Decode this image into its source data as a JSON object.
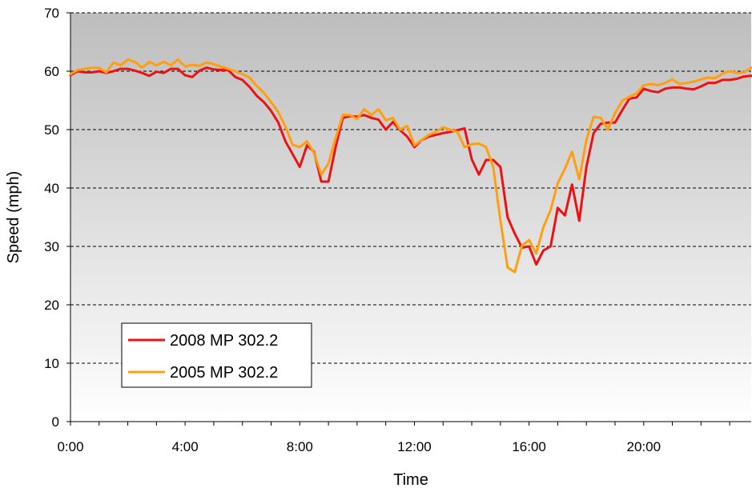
{
  "chart_data": {
    "type": "line",
    "title": "",
    "xlabel": "Time",
    "ylabel": "Speed (mph)",
    "xlim": [
      0,
      23.75
    ],
    "ylim": [
      0,
      70
    ],
    "yticks": [
      0,
      10,
      20,
      30,
      40,
      50,
      60,
      70
    ],
    "xticks": [
      {
        "value": 0,
        "label": "0:00"
      },
      {
        "value": 4,
        "label": "4:00"
      },
      {
        "value": 8,
        "label": "8:00"
      },
      {
        "value": 12,
        "label": "12:00"
      },
      {
        "value": 16,
        "label": "16:00"
      },
      {
        "value": 20,
        "label": "20:00"
      }
    ],
    "grid": "horizontal dashed",
    "background": "vertical gradient, dark gray top to white bottom",
    "legend_position": "bottom-left",
    "colors": {
      "series_2008": "#ee1111",
      "series_2005": "#ff9f0f",
      "plot_top": "#bdbdbd",
      "plot_bottom": "#ffffff"
    },
    "series": [
      {
        "name": "2008 MP 302.2",
        "points": [
          [
            0.0,
            59.3
          ],
          [
            0.25,
            60.0
          ],
          [
            0.5,
            59.8
          ],
          [
            0.75,
            59.8
          ],
          [
            1.0,
            60.0
          ],
          [
            1.25,
            59.7
          ],
          [
            1.5,
            60.0
          ],
          [
            1.75,
            60.4
          ],
          [
            2.0,
            60.4
          ],
          [
            2.25,
            60.1
          ],
          [
            2.5,
            59.7
          ],
          [
            2.75,
            59.2
          ],
          [
            3.0,
            59.9
          ],
          [
            3.25,
            59.7
          ],
          [
            3.5,
            60.4
          ],
          [
            3.75,
            60.4
          ],
          [
            4.0,
            59.3
          ],
          [
            4.25,
            59.0
          ],
          [
            4.5,
            60.1
          ],
          [
            4.75,
            60.6
          ],
          [
            5.0,
            60.3
          ],
          [
            5.25,
            60.2
          ],
          [
            5.5,
            60.2
          ],
          [
            5.75,
            59.0
          ],
          [
            6.0,
            58.5
          ],
          [
            6.25,
            57.3
          ],
          [
            6.5,
            55.8
          ],
          [
            6.75,
            54.7
          ],
          [
            7.0,
            53.2
          ],
          [
            7.25,
            51.2
          ],
          [
            7.5,
            48.0
          ],
          [
            7.75,
            45.8
          ],
          [
            8.0,
            43.6
          ],
          [
            8.25,
            47.3
          ],
          [
            8.5,
            46.2
          ],
          [
            8.75,
            41.1
          ],
          [
            9.0,
            41.1
          ],
          [
            9.25,
            47.0
          ],
          [
            9.5,
            52.0
          ],
          [
            9.75,
            52.3
          ],
          [
            10.0,
            52.2
          ],
          [
            10.25,
            52.5
          ],
          [
            10.5,
            52.0
          ],
          [
            10.75,
            51.7
          ],
          [
            11.0,
            50.0
          ],
          [
            11.25,
            51.3
          ],
          [
            11.5,
            49.9
          ],
          [
            11.75,
            48.8
          ],
          [
            12.0,
            47.0
          ],
          [
            12.25,
            48.2
          ],
          [
            12.5,
            48.8
          ],
          [
            12.75,
            49.1
          ],
          [
            13.0,
            49.4
          ],
          [
            13.25,
            49.6
          ],
          [
            13.5,
            49.9
          ],
          [
            13.75,
            50.2
          ],
          [
            14.0,
            44.9
          ],
          [
            14.25,
            42.3
          ],
          [
            14.5,
            44.8
          ],
          [
            14.75,
            44.8
          ],
          [
            15.0,
            43.6
          ],
          [
            15.25,
            35.0
          ],
          [
            15.5,
            32.2
          ],
          [
            15.75,
            29.8
          ],
          [
            16.0,
            30.0
          ],
          [
            16.25,
            26.9
          ],
          [
            16.5,
            29.3
          ],
          [
            16.75,
            30.0
          ],
          [
            17.0,
            36.6
          ],
          [
            17.25,
            35.3
          ],
          [
            17.5,
            40.6
          ],
          [
            17.75,
            34.4
          ],
          [
            18.0,
            43.6
          ],
          [
            18.25,
            49.4
          ],
          [
            18.5,
            51.0
          ],
          [
            18.75,
            51.2
          ],
          [
            19.0,
            51.2
          ],
          [
            19.25,
            53.3
          ],
          [
            19.5,
            55.3
          ],
          [
            19.75,
            55.5
          ],
          [
            20.0,
            57.0
          ],
          [
            20.25,
            56.6
          ],
          [
            20.5,
            56.4
          ],
          [
            20.75,
            57.0
          ],
          [
            21.0,
            57.2
          ],
          [
            21.25,
            57.2
          ],
          [
            21.5,
            57.0
          ],
          [
            21.75,
            56.9
          ],
          [
            22.0,
            57.4
          ],
          [
            22.25,
            58.0
          ],
          [
            22.5,
            58.0
          ],
          [
            22.75,
            58.5
          ],
          [
            23.0,
            58.5
          ],
          [
            23.25,
            58.7
          ],
          [
            23.5,
            59.1
          ],
          [
            23.75,
            59.2
          ]
        ]
      },
      {
        "name": "2005 MP 302.2",
        "points": [
          [
            0.0,
            59.5
          ],
          [
            0.25,
            60.2
          ],
          [
            0.5,
            60.4
          ],
          [
            0.75,
            60.6
          ],
          [
            1.0,
            60.6
          ],
          [
            1.25,
            59.8
          ],
          [
            1.5,
            61.5
          ],
          [
            1.75,
            61.0
          ],
          [
            2.0,
            62.0
          ],
          [
            2.25,
            61.6
          ],
          [
            2.5,
            60.6
          ],
          [
            2.75,
            61.6
          ],
          [
            3.0,
            61.0
          ],
          [
            3.25,
            61.6
          ],
          [
            3.5,
            61.0
          ],
          [
            3.75,
            62.0
          ],
          [
            4.0,
            60.8
          ],
          [
            4.25,
            61.1
          ],
          [
            4.5,
            60.9
          ],
          [
            4.75,
            61.5
          ],
          [
            5.0,
            61.2
          ],
          [
            5.25,
            60.8
          ],
          [
            5.5,
            60.4
          ],
          [
            5.75,
            60.0
          ],
          [
            6.0,
            59.5
          ],
          [
            6.25,
            58.9
          ],
          [
            6.5,
            57.5
          ],
          [
            6.75,
            56.3
          ],
          [
            7.0,
            54.7
          ],
          [
            7.25,
            53.0
          ],
          [
            7.5,
            50.5
          ],
          [
            7.75,
            47.4
          ],
          [
            8.0,
            47.0
          ],
          [
            8.25,
            48.0
          ],
          [
            8.5,
            46.0
          ],
          [
            8.75,
            42.3
          ],
          [
            9.0,
            44.2
          ],
          [
            9.25,
            48.5
          ],
          [
            9.5,
            52.5
          ],
          [
            9.75,
            52.5
          ],
          [
            10.0,
            51.8
          ],
          [
            10.25,
            53.5
          ],
          [
            10.5,
            52.5
          ],
          [
            10.75,
            53.5
          ],
          [
            11.0,
            51.6
          ],
          [
            11.25,
            52.0
          ],
          [
            11.5,
            50.0
          ],
          [
            11.75,
            50.6
          ],
          [
            12.0,
            47.3
          ],
          [
            12.25,
            48.2
          ],
          [
            12.5,
            49.1
          ],
          [
            12.75,
            49.6
          ],
          [
            13.0,
            50.4
          ],
          [
            13.25,
            50.0
          ],
          [
            13.5,
            49.6
          ],
          [
            13.75,
            47.0
          ],
          [
            14.0,
            47.5
          ],
          [
            14.25,
            47.6
          ],
          [
            14.5,
            47.0
          ],
          [
            14.75,
            43.6
          ],
          [
            15.0,
            34.5
          ],
          [
            15.25,
            26.4
          ],
          [
            15.5,
            25.6
          ],
          [
            15.75,
            30.1
          ],
          [
            16.0,
            31.1
          ],
          [
            16.25,
            28.8
          ],
          [
            16.5,
            33.3
          ],
          [
            16.75,
            36.2
          ],
          [
            17.0,
            40.8
          ],
          [
            17.25,
            43.3
          ],
          [
            17.5,
            46.2
          ],
          [
            17.75,
            41.5
          ],
          [
            18.0,
            48.2
          ],
          [
            18.25,
            52.2
          ],
          [
            18.5,
            52.0
          ],
          [
            18.75,
            50.0
          ],
          [
            19.0,
            52.8
          ],
          [
            19.25,
            54.9
          ],
          [
            19.5,
            55.6
          ],
          [
            19.75,
            56.2
          ],
          [
            20.0,
            57.6
          ],
          [
            20.25,
            57.8
          ],
          [
            20.5,
            57.6
          ],
          [
            20.75,
            58.0
          ],
          [
            21.0,
            58.6
          ],
          [
            21.25,
            57.8
          ],
          [
            21.5,
            58.0
          ],
          [
            21.75,
            58.2
          ],
          [
            22.0,
            58.6
          ],
          [
            22.25,
            58.9
          ],
          [
            22.5,
            58.8
          ],
          [
            22.75,
            59.6
          ],
          [
            23.0,
            60.0
          ],
          [
            23.25,
            59.7
          ],
          [
            23.5,
            59.8
          ],
          [
            23.75,
            60.6
          ]
        ]
      }
    ]
  }
}
